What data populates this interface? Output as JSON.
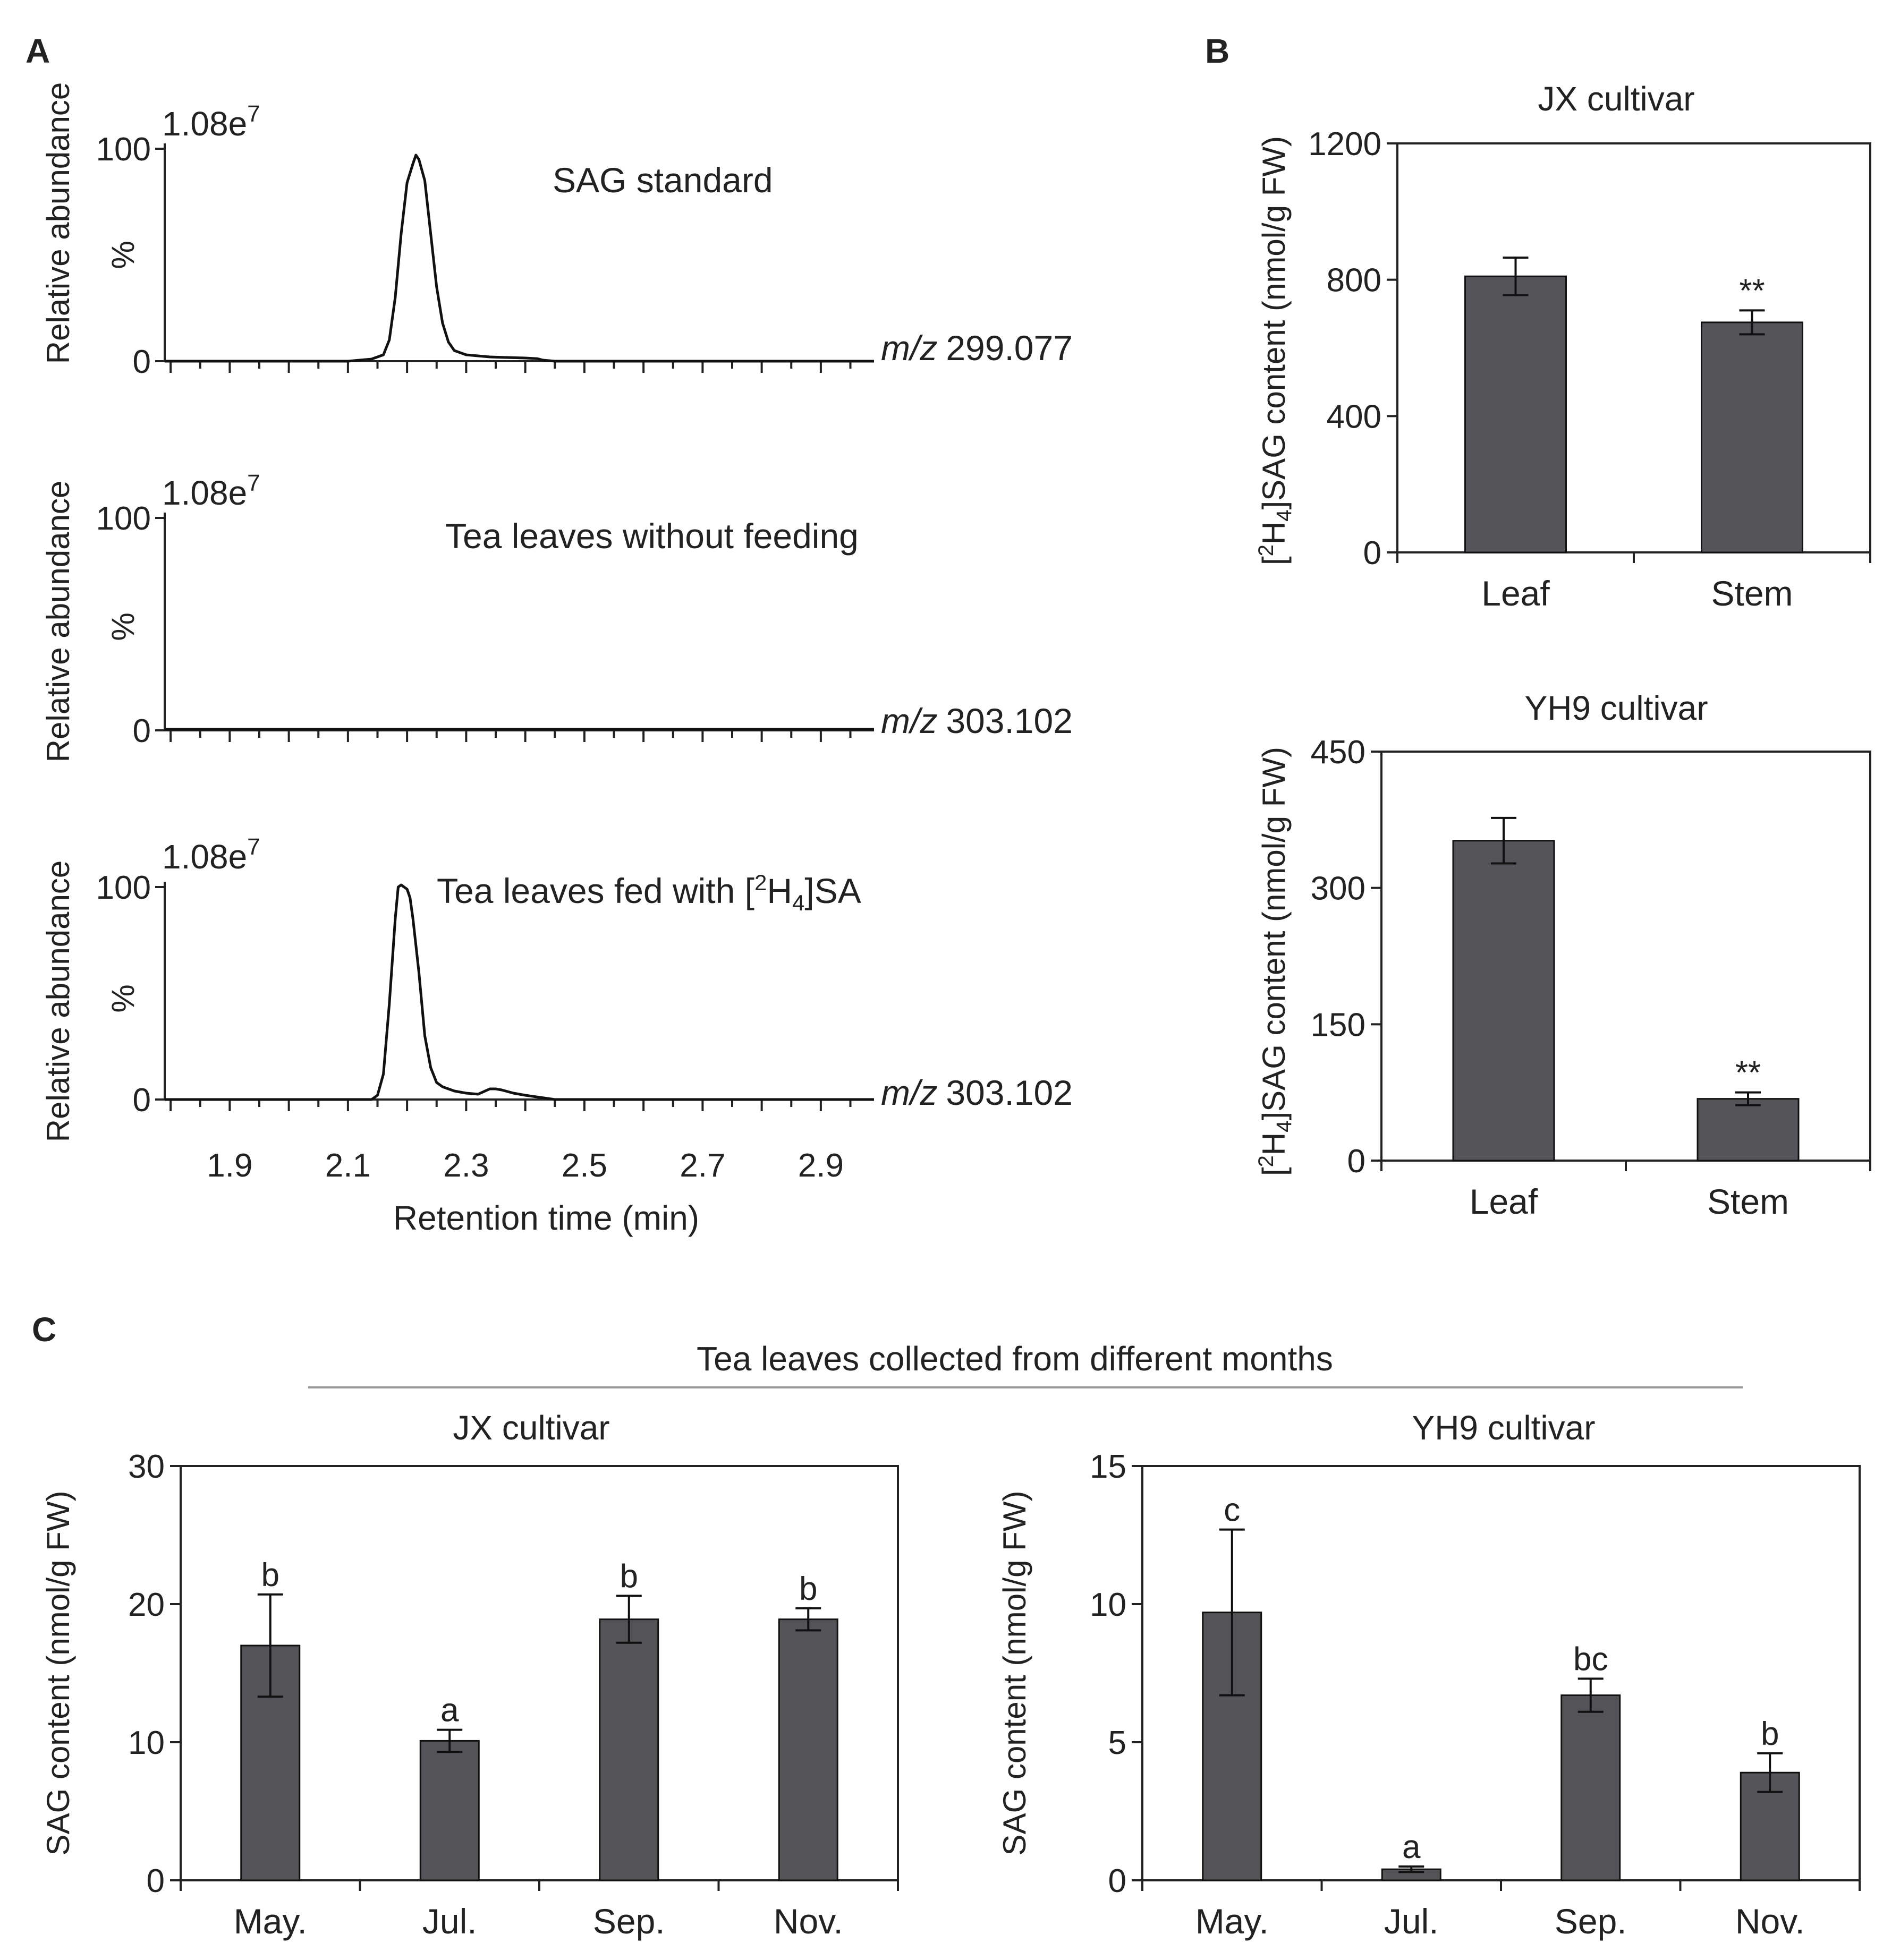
{
  "colors": {
    "bar": "#555559",
    "axis": "#222222",
    "text": "#222222",
    "line": "#111111"
  },
  "chart_data": [
    {
      "panel": "A",
      "type": "line",
      "xlabel": "Retention time (min)",
      "x_ticks": [
        "1.9",
        "2.1",
        "2.3",
        "2.5",
        "2.7",
        "2.9"
      ],
      "xlim": [
        1.79,
        2.99
      ],
      "traces": [
        {
          "label": "SAG standard",
          "scale": "1.08e",
          "scale_exp": "7",
          "mz_prefix": "m/z",
          "mz_value": "299.077",
          "ylabel": "Relative abundance",
          "ylabel_unit": "%",
          "y_ticks": [
            "100",
            "0"
          ],
          "ylim": [
            0,
            100
          ],
          "x": [
            1.79,
            2.1,
            2.14,
            2.16,
            2.17,
            2.18,
            2.19,
            2.2,
            2.21,
            2.215,
            2.22,
            2.23,
            2.24,
            2.25,
            2.26,
            2.27,
            2.28,
            2.3,
            2.32,
            2.34,
            2.36,
            2.4,
            2.42,
            2.43,
            2.45,
            2.99
          ],
          "y": [
            0,
            0,
            1,
            3,
            10,
            30,
            60,
            84,
            93,
            97,
            95,
            85,
            60,
            35,
            18,
            9,
            5,
            3,
            2.5,
            2,
            1.8,
            1.5,
            1.2,
            0.5,
            0,
            0
          ]
        },
        {
          "label": "Tea leaves without feeding",
          "scale": "1.08e",
          "scale_exp": "7",
          "mz_prefix": "m/z",
          "mz_value": "303.102",
          "ylabel": "Relative abundance",
          "ylabel_unit": "%",
          "y_ticks": [
            "100",
            "0"
          ],
          "ylim": [
            0,
            100
          ],
          "x": [
            1.79,
            2.99
          ],
          "y": [
            0.5,
            0.5
          ]
        },
        {
          "label_prefix": "Tea leaves fed with [",
          "label_sup": "2",
          "label_mid": "H",
          "label_sub": "4",
          "label_suffix": "]SA",
          "scale": "1.08e",
          "scale_exp": "7",
          "mz_prefix": "m/z",
          "mz_value": "303.102",
          "ylabel": "Relative abundance",
          "ylabel_unit": "%",
          "y_ticks": [
            "100",
            "0"
          ],
          "ylim": [
            0,
            100
          ],
          "x": [
            1.79,
            2.14,
            2.15,
            2.16,
            2.17,
            2.18,
            2.185,
            2.19,
            2.2,
            2.205,
            2.21,
            2.22,
            2.23,
            2.24,
            2.25,
            2.26,
            2.28,
            2.3,
            2.32,
            2.34,
            2.35,
            2.36,
            2.38,
            2.4,
            2.42,
            2.45,
            2.99
          ],
          "y": [
            0,
            0,
            2,
            12,
            45,
            85,
            100,
            101,
            99,
            95,
            85,
            60,
            30,
            15,
            8,
            6,
            4,
            3,
            2.5,
            5,
            5,
            4.5,
            3,
            2,
            1.2,
            0,
            0
          ]
        }
      ]
    },
    {
      "panel": "B",
      "type": "bar",
      "title": "JX cultivar",
      "ylabel_prefix": "[",
      "ylabel_sup": "2",
      "ylabel_mid": "H",
      "ylabel_sub": "4",
      "ylabel_suffix": "]SAG content (nmol/g FW)",
      "categories": [
        "Leaf",
        "Stem"
      ],
      "values": [
        810,
        675
      ],
      "errors": [
        55,
        35
      ],
      "annotations": [
        "",
        "**"
      ],
      "ylim": [
        0,
        1200
      ],
      "y_ticks": [
        0,
        400,
        800,
        1200
      ]
    },
    {
      "panel": "B",
      "type": "bar",
      "title": "YH9 cultivar",
      "ylabel_prefix": "[",
      "ylabel_sup": "2",
      "ylabel_mid": "H",
      "ylabel_sub": "4",
      "ylabel_suffix": "]SAG content (nmol/g FW)",
      "categories": [
        "Leaf",
        "Stem"
      ],
      "values": [
        352,
        68
      ],
      "errors": [
        25,
        7
      ],
      "annotations": [
        "",
        "**"
      ],
      "ylim": [
        0,
        450
      ],
      "y_ticks": [
        0,
        150,
        300,
        450
      ]
    },
    {
      "panel": "C",
      "type": "bar",
      "title": "JX cultivar",
      "ylabel": "SAG content (nmol/g FW)",
      "categories": [
        "May.",
        "Jul.",
        "Sep.",
        "Nov."
      ],
      "values": [
        17,
        10.1,
        18.9,
        18.9
      ],
      "errors": [
        3.7,
        0.8,
        1.7,
        0.8
      ],
      "annotations": [
        "b",
        "a",
        "b",
        "b"
      ],
      "ylim": [
        0,
        30
      ],
      "y_ticks": [
        0,
        10,
        20,
        30
      ]
    },
    {
      "panel": "C",
      "type": "bar",
      "title": "YH9 cultivar",
      "ylabel": "SAG content (nmol/g FW)",
      "categories": [
        "May.",
        "Jul.",
        "Sep.",
        "Nov."
      ],
      "values": [
        9.7,
        0.4,
        6.7,
        3.9
      ],
      "errors": [
        3.0,
        0.1,
        0.6,
        0.7
      ],
      "annotations": [
        "c",
        "a",
        "bc",
        "b"
      ],
      "ylim": [
        0,
        15
      ],
      "y_ticks": [
        0,
        5,
        10,
        15
      ]
    }
  ],
  "panel_labels": {
    "a": "A",
    "b": "B",
    "c": "C"
  },
  "c_header": "Tea leaves collected from different months"
}
